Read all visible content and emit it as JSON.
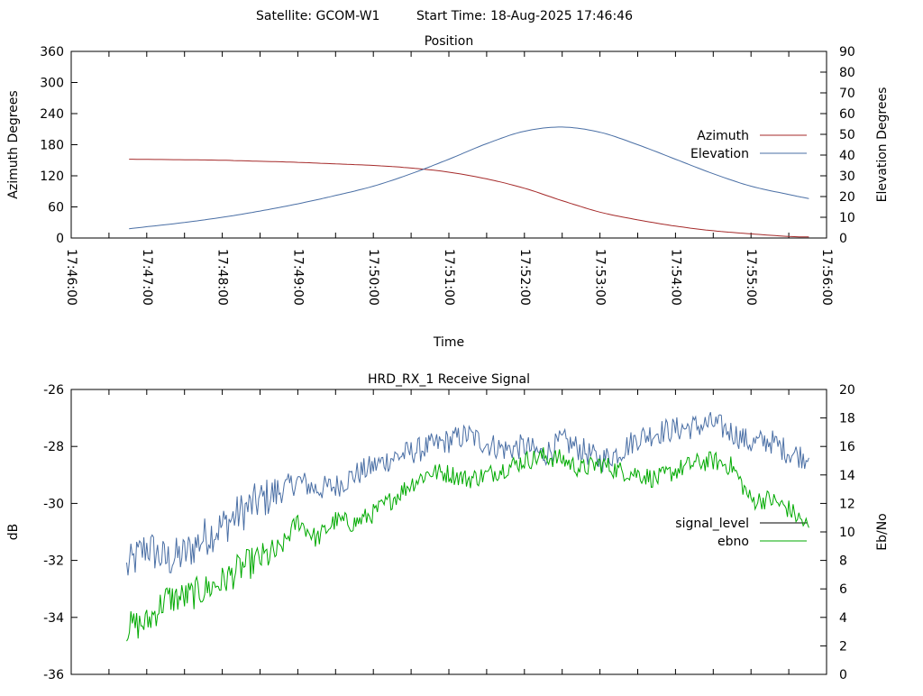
{
  "header": {
    "satellite": "Satellite: GCOM-W1",
    "start_time": "Start Time: 18-Aug-2025 17:46:46"
  },
  "chart_data": [
    {
      "type": "line",
      "title": "Position",
      "xlabel": "Time",
      "ylabel": "Azimuth Degrees",
      "y2label": "Elevation Degrees",
      "xlim": [
        "17:46:00",
        "17:56:00"
      ],
      "ylim": [
        0,
        360
      ],
      "y2lim": [
        0,
        90
      ],
      "xticks": [
        "17:46:00",
        "17:47:00",
        "17:48:00",
        "17:49:00",
        "17:50:00",
        "17:51:00",
        "17:52:00",
        "17:53:00",
        "17:54:00",
        "17:55:00",
        "17:56:00"
      ],
      "yticks": [
        "0",
        "60",
        "120",
        "180",
        "240",
        "300",
        "360"
      ],
      "y2ticks": [
        "0",
        "10",
        "20",
        "30",
        "40",
        "50",
        "60",
        "70",
        "80",
        "90"
      ],
      "legend": "right",
      "series": [
        {
          "name": "Azimuth",
          "axis": "y",
          "color": "#a52a2a",
          "x": [
            "17:46:46",
            "17:47:30",
            "17:48:00",
            "17:48:30",
            "17:49:00",
            "17:49:30",
            "17:50:00",
            "17:50:30",
            "17:51:00",
            "17:51:30",
            "17:52:00",
            "17:52:30",
            "17:53:00",
            "17:53:30",
            "17:54:00",
            "17:54:30",
            "17:55:00",
            "17:55:30",
            "17:55:46"
          ],
          "y": [
            152,
            151,
            150,
            148,
            146,
            143,
            140,
            135,
            127,
            114,
            96,
            72,
            50,
            35,
            23,
            14,
            8,
            3,
            2
          ]
        },
        {
          "name": "Elevation",
          "axis": "y2",
          "color": "#4a6fa5",
          "x": [
            "17:46:46",
            "17:47:30",
            "17:48:00",
            "17:48:30",
            "17:49:00",
            "17:49:30",
            "17:50:00",
            "17:50:30",
            "17:51:00",
            "17:51:30",
            "17:52:00",
            "17:52:30",
            "17:53:00",
            "17:53:30",
            "17:54:00",
            "17:54:30",
            "17:55:00",
            "17:55:30",
            "17:55:46"
          ],
          "y": [
            4.5,
            7.5,
            10,
            13,
            16.5,
            20.5,
            25,
            31,
            38,
            45.5,
            51.5,
            53.5,
            51,
            45,
            38,
            31,
            25,
            21,
            19
          ]
        }
      ]
    },
    {
      "type": "line",
      "title": "HRD_RX_1 Receive Signal",
      "ylabel": "dB",
      "y2label": "Eb/No",
      "ylim": [
        -36,
        -26
      ],
      "y2lim": [
        0,
        20
      ],
      "yticks": [
        "-36",
        "-34",
        "-32",
        "-30",
        "-28",
        "-26"
      ],
      "y2ticks": [
        "0",
        "2",
        "4",
        "6",
        "8",
        "10",
        "12",
        "14",
        "16",
        "18",
        "20"
      ],
      "legend": "right",
      "series": [
        {
          "name": "signal_level",
          "axis": "y",
          "color": "#4a6fa5",
          "x": [
            "17:46:44",
            "17:47:00",
            "17:47:15",
            "17:47:30",
            "17:47:45",
            "17:48:00",
            "17:48:15",
            "17:48:30",
            "17:48:45",
            "17:49:00",
            "17:49:15",
            "17:49:30",
            "17:49:45",
            "17:50:00",
            "17:50:15",
            "17:50:30",
            "17:50:45",
            "17:51:00",
            "17:51:15",
            "17:51:30",
            "17:51:45",
            "17:52:00",
            "17:52:15",
            "17:52:30",
            "17:52:45",
            "17:53:00",
            "17:53:15",
            "17:53:30",
            "17:53:45",
            "17:54:00",
            "17:54:15",
            "17:54:30",
            "17:54:45",
            "17:55:00",
            "17:55:15",
            "17:55:30",
            "17:55:46"
          ],
          "y": [
            -32.3,
            -31.5,
            -32.0,
            -31.8,
            -31.2,
            -30.8,
            -30.3,
            -29.9,
            -29.6,
            -29.2,
            -29.5,
            -29.4,
            -29.0,
            -28.7,
            -28.4,
            -28.2,
            -28.0,
            -27.8,
            -27.6,
            -27.9,
            -28.1,
            -28.0,
            -28.3,
            -27.8,
            -28.1,
            -28.5,
            -28.2,
            -27.7,
            -27.5,
            -27.4,
            -27.3,
            -27.2,
            -27.5,
            -27.9,
            -27.8,
            -28.2,
            -28.4
          ]
        },
        {
          "name": "ebno",
          "axis": "y2",
          "color": "#00aa00",
          "x": [
            "17:46:44",
            "17:47:00",
            "17:47:15",
            "17:47:30",
            "17:47:45",
            "17:48:00",
            "17:48:15",
            "17:48:30",
            "17:48:45",
            "17:49:00",
            "17:49:15",
            "17:49:30",
            "17:49:45",
            "17:50:00",
            "17:50:15",
            "17:50:30",
            "17:50:45",
            "17:51:00",
            "17:51:15",
            "17:51:30",
            "17:51:45",
            "17:52:00",
            "17:52:15",
            "17:52:30",
            "17:52:45",
            "17:53:00",
            "17:53:15",
            "17:53:30",
            "17:53:45",
            "17:54:00",
            "17:54:15",
            "17:54:30",
            "17:54:45",
            "17:55:00",
            "17:55:15",
            "17:55:30",
            "17:55:46"
          ],
          "y": [
            3.3,
            3.6,
            5.3,
            5.4,
            5.9,
            6.5,
            7.5,
            8.1,
            8.6,
            10.8,
            9.5,
            10.8,
            10.6,
            11.3,
            12.3,
            13.4,
            14.2,
            14.1,
            13.7,
            14.0,
            14.5,
            15.0,
            15.3,
            15.1,
            14.4,
            14.8,
            14.3,
            14.1,
            13.7,
            14.3,
            14.8,
            15.0,
            14.6,
            12.2,
            12.3,
            11.6,
            10.3
          ]
        }
      ]
    }
  ]
}
